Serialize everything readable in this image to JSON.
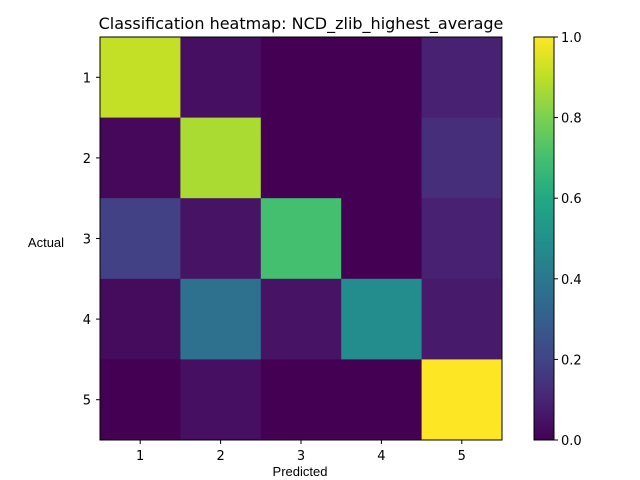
{
  "chart_data": {
    "type": "heatmap",
    "title": "Classification heatmap: NCD_zlib_highest_average",
    "xlabel": "Predicted",
    "ylabel": "Actual",
    "x_categories": [
      "1",
      "2",
      "3",
      "4",
      "5"
    ],
    "y_categories": [
      "1",
      "2",
      "3",
      "4",
      "5"
    ],
    "values": [
      [
        0.91,
        0.04,
        0.0,
        0.0,
        0.09
      ],
      [
        0.02,
        0.87,
        0.0,
        0.0,
        0.13
      ],
      [
        0.19,
        0.05,
        0.7,
        0.0,
        0.09
      ],
      [
        0.03,
        0.37,
        0.05,
        0.48,
        0.07
      ],
      [
        0.0,
        0.04,
        0.0,
        0.0,
        1.0
      ]
    ],
    "colormap": "viridis",
    "colorbar": {
      "range": [
        0.0,
        1.0
      ],
      "ticks": [
        "0.0",
        "0.2",
        "0.4",
        "0.6",
        "0.8",
        "1.0"
      ]
    }
  }
}
